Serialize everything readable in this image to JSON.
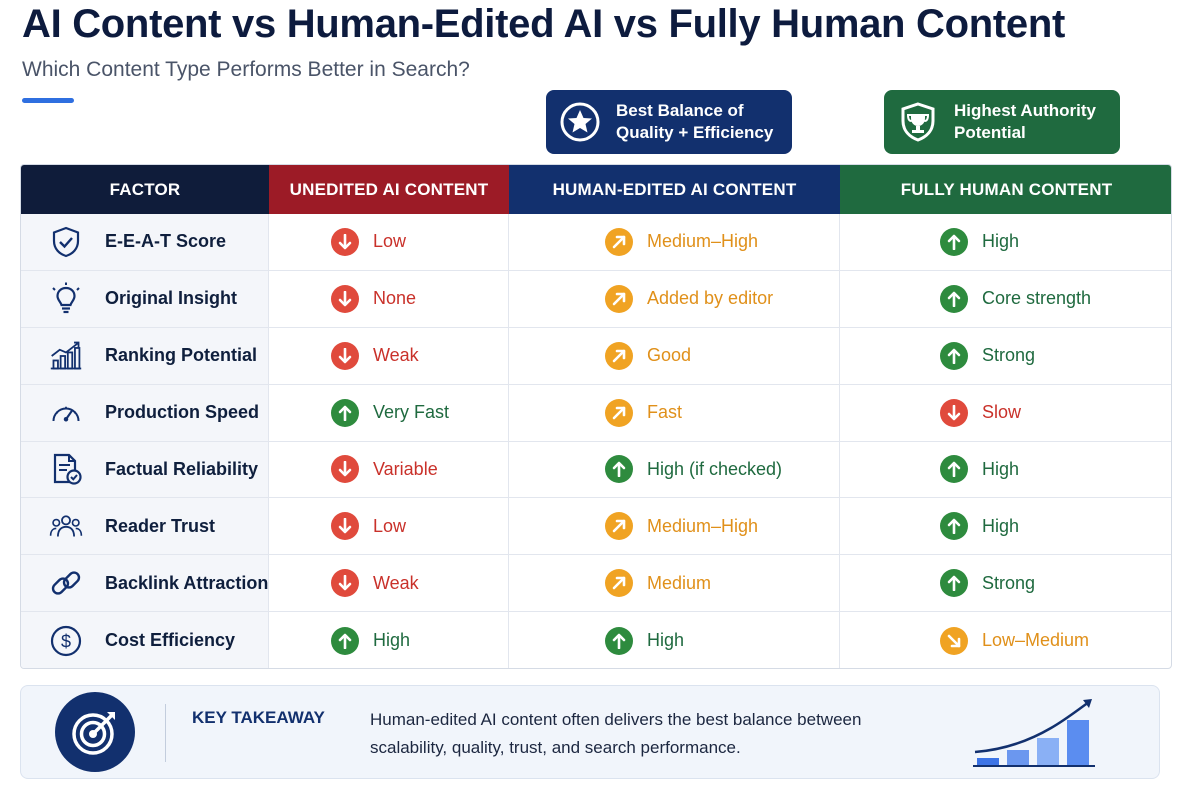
{
  "title": "AI Content vs Human-Edited AI vs Fully Human Content",
  "subtitle": "Which Content Type Performs Better in Search?",
  "callouts": {
    "balance": {
      "text": "Best Balance of\nQuality + Efficiency",
      "icon": "star-badge-icon"
    },
    "authority": {
      "text": "Highest Authority\nPotential",
      "icon": "trophy-shield-icon"
    }
  },
  "table": {
    "headers": [
      "FACTOR",
      "UNEDITED AI CONTENT",
      "HUMAN-EDITED AI CONTENT",
      "FULLY HUMAN CONTENT"
    ],
    "rows": [
      {
        "factor": "E-E-A-T Score",
        "icon": "shield-check-icon",
        "values": [
          {
            "text": "Low",
            "trend": "down"
          },
          {
            "text": "Medium–High",
            "trend": "diag"
          },
          {
            "text": "High",
            "trend": "up"
          }
        ]
      },
      {
        "factor": "Original Insight",
        "icon": "lightbulb-icon",
        "values": [
          {
            "text": "None",
            "trend": "down"
          },
          {
            "text": "Added by editor",
            "trend": "diag"
          },
          {
            "text": "Core strength",
            "trend": "up"
          }
        ]
      },
      {
        "factor": "Ranking Potential",
        "icon": "growth-chart-icon",
        "values": [
          {
            "text": "Weak",
            "trend": "down"
          },
          {
            "text": "Good",
            "trend": "diag"
          },
          {
            "text": "Strong",
            "trend": "up"
          }
        ]
      },
      {
        "factor": "Production Speed",
        "icon": "speedometer-icon",
        "values": [
          {
            "text": "Very Fast",
            "trend": "up"
          },
          {
            "text": "Fast",
            "trend": "diag"
          },
          {
            "text": "Slow",
            "trend": "down"
          }
        ]
      },
      {
        "factor": "Factual Reliability",
        "icon": "document-check-icon",
        "values": [
          {
            "text": "Variable",
            "trend": "down"
          },
          {
            "text": "High (if checked)",
            "trend": "up"
          },
          {
            "text": "High",
            "trend": "up"
          }
        ]
      },
      {
        "factor": "Reader Trust",
        "icon": "people-icon",
        "values": [
          {
            "text": "Low",
            "trend": "down"
          },
          {
            "text": "Medium–High",
            "trend": "diag"
          },
          {
            "text": "High",
            "trend": "up"
          }
        ]
      },
      {
        "factor": "Backlink Attraction",
        "icon": "link-icon",
        "values": [
          {
            "text": "Weak",
            "trend": "down"
          },
          {
            "text": "Medium",
            "trend": "diag"
          },
          {
            "text": "Strong",
            "trend": "up"
          }
        ]
      },
      {
        "factor": "Cost Efficiency",
        "icon": "dollar-icon",
        "values": [
          {
            "text": "High",
            "trend": "up"
          },
          {
            "text": "High",
            "trend": "up"
          },
          {
            "text": "Low–Medium",
            "trend": "dr"
          }
        ]
      }
    ]
  },
  "takeaway": {
    "label": "KEY TAKEAWAY",
    "text": "Human-edited AI content often delivers the best balance between scalability, quality, trust, and search performance.",
    "icon": "target-arrow-icon",
    "chart_icon": "rising-bar-chart-icon"
  },
  "colors": {
    "navy": "#0f1c3a",
    "red": "#9c1b26",
    "blue": "#12306e",
    "green": "#1f6a3f",
    "trend_down": "#e04a3c",
    "trend_up": "#2e8b3e",
    "trend_mid": "#f0a323"
  }
}
